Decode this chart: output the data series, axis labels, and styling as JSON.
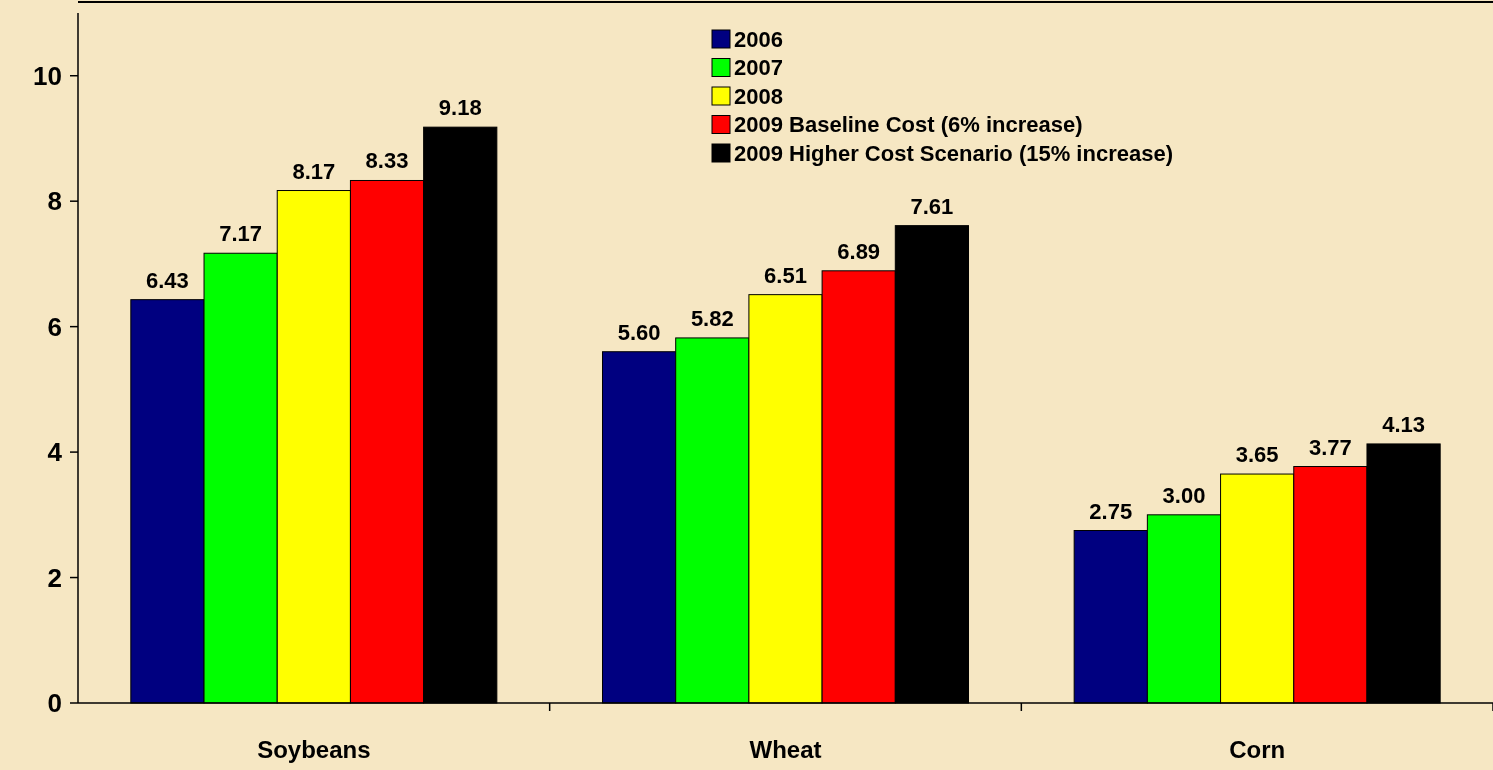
{
  "chart_data": {
    "type": "bar",
    "categories": [
      "Soybeans",
      "Wheat",
      "Corn"
    ],
    "series": [
      {
        "name": "2006",
        "color": "#000080",
        "values": [
          6.43,
          5.6,
          2.75
        ]
      },
      {
        "name": "2007",
        "color": "#00ff00",
        "values": [
          7.17,
          5.82,
          3.0
        ]
      },
      {
        "name": "2008",
        "color": "#ffff00",
        "values": [
          8.17,
          6.51,
          3.65
        ]
      },
      {
        "name": "2009 Baseline Cost (6% increase)",
        "color": "#ff0000",
        "values": [
          8.33,
          6.89,
          3.77
        ]
      },
      {
        "name": "2009 Higher Cost Scenario (15% increase)",
        "color": "#000000",
        "values": [
          9.18,
          7.61,
          4.13
        ]
      }
    ],
    "value_labels": [
      [
        "6.43",
        "5.60",
        "2.75"
      ],
      [
        "7.17",
        "5.82",
        "3.00"
      ],
      [
        "8.17",
        "6.51",
        "3.65"
      ],
      [
        "8.33",
        "6.89",
        "3.77"
      ],
      [
        "9.18",
        "7.61",
        "4.13"
      ]
    ],
    "ylim": [
      0,
      11
    ],
    "yticks": [
      0,
      2,
      4,
      6,
      8,
      10
    ],
    "grid": false,
    "legend": "top"
  }
}
